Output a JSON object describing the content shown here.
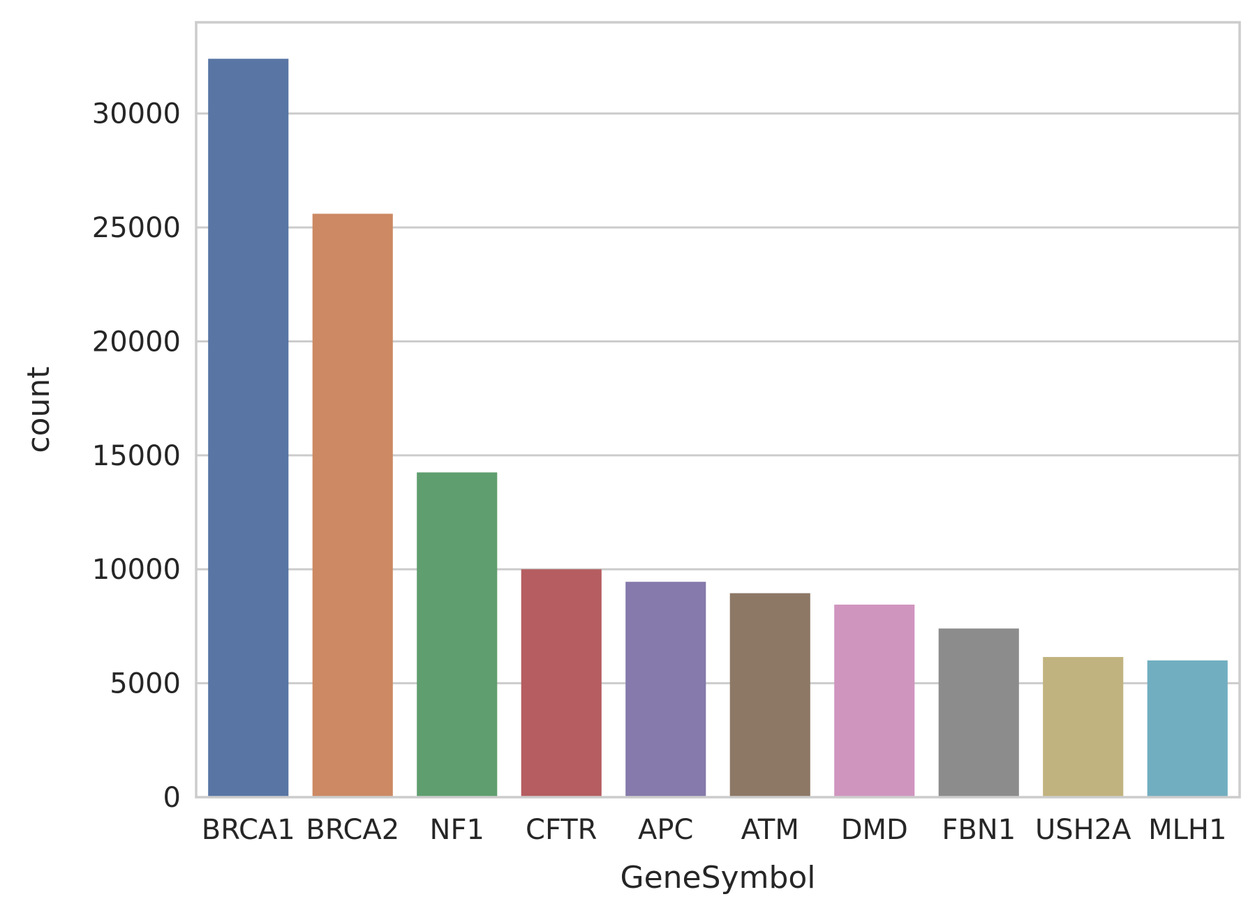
{
  "chart_data": {
    "type": "bar",
    "categories": [
      "BRCA1",
      "BRCA2",
      "NF1",
      "CFTR",
      "APC",
      "ATM",
      "DMD",
      "FBN1",
      "USH2A",
      "MLH1"
    ],
    "values": [
      32400,
      25600,
      14250,
      10000,
      9450,
      8950,
      8450,
      7400,
      6150,
      6000
    ],
    "colors": [
      "#5875a4",
      "#cc8963",
      "#5f9e6e",
      "#b55d60",
      "#857aab",
      "#8d7866",
      "#d095bf",
      "#8c8c8c",
      "#c1b37f",
      "#71aec0"
    ],
    "title": "",
    "xlabel": "GeneSymbol",
    "ylabel": "count",
    "yticks": [
      0,
      5000,
      10000,
      15000,
      20000,
      25000,
      30000
    ],
    "ylim": [
      0,
      34000
    ],
    "grid": "horizontal"
  }
}
